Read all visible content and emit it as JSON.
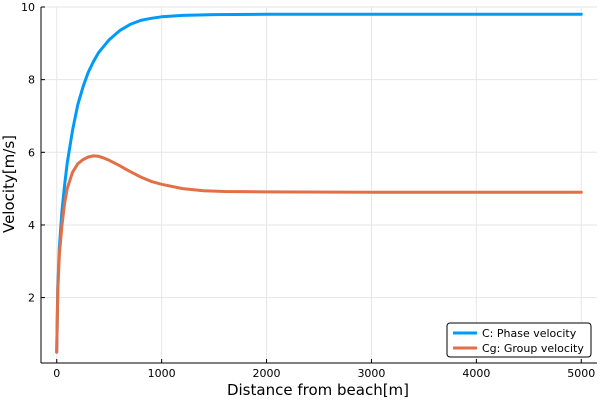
{
  "chart_data": {
    "type": "line",
    "title": "",
    "xlabel": "Distance from beach[m]",
    "ylabel": "Velocity[m/s]",
    "xlim": [
      -150,
      5150
    ],
    "ylim": [
      0.2,
      10.0
    ],
    "xticks": [
      0,
      1000,
      2000,
      3000,
      4000,
      5000
    ],
    "yticks": [
      2,
      4,
      6,
      8,
      10
    ],
    "grid": true,
    "legend": {
      "position": "bottom-right"
    },
    "series": [
      {
        "name": "C: Phase velocity",
        "color": "#009af9",
        "x": [
          0,
          10,
          25,
          50,
          75,
          100,
          150,
          200,
          250,
          300,
          350,
          400,
          500,
          600,
          700,
          800,
          900,
          1000,
          1200,
          1500,
          2000,
          3000,
          4000,
          5000
        ],
        "y": [
          0.5,
          2.3,
          3.4,
          4.4,
          5.1,
          5.7,
          6.6,
          7.3,
          7.8,
          8.2,
          8.5,
          8.75,
          9.1,
          9.35,
          9.52,
          9.63,
          9.69,
          9.73,
          9.77,
          9.79,
          9.8,
          9.8,
          9.8,
          9.8
        ]
      },
      {
        "name": "Cg: Group velocity",
        "color": "#e26f46",
        "x": [
          0,
          10,
          25,
          50,
          75,
          100,
          150,
          200,
          250,
          300,
          350,
          400,
          450,
          500,
          600,
          700,
          800,
          900,
          1000,
          1200,
          1400,
          1600,
          2000,
          3000,
          4000,
          5000
        ],
        "y": [
          0.5,
          2.2,
          3.2,
          4.0,
          4.6,
          5.0,
          5.45,
          5.68,
          5.8,
          5.87,
          5.9,
          5.89,
          5.84,
          5.78,
          5.63,
          5.47,
          5.32,
          5.2,
          5.12,
          5.0,
          4.94,
          4.92,
          4.91,
          4.9,
          4.9,
          4.9
        ]
      }
    ]
  }
}
